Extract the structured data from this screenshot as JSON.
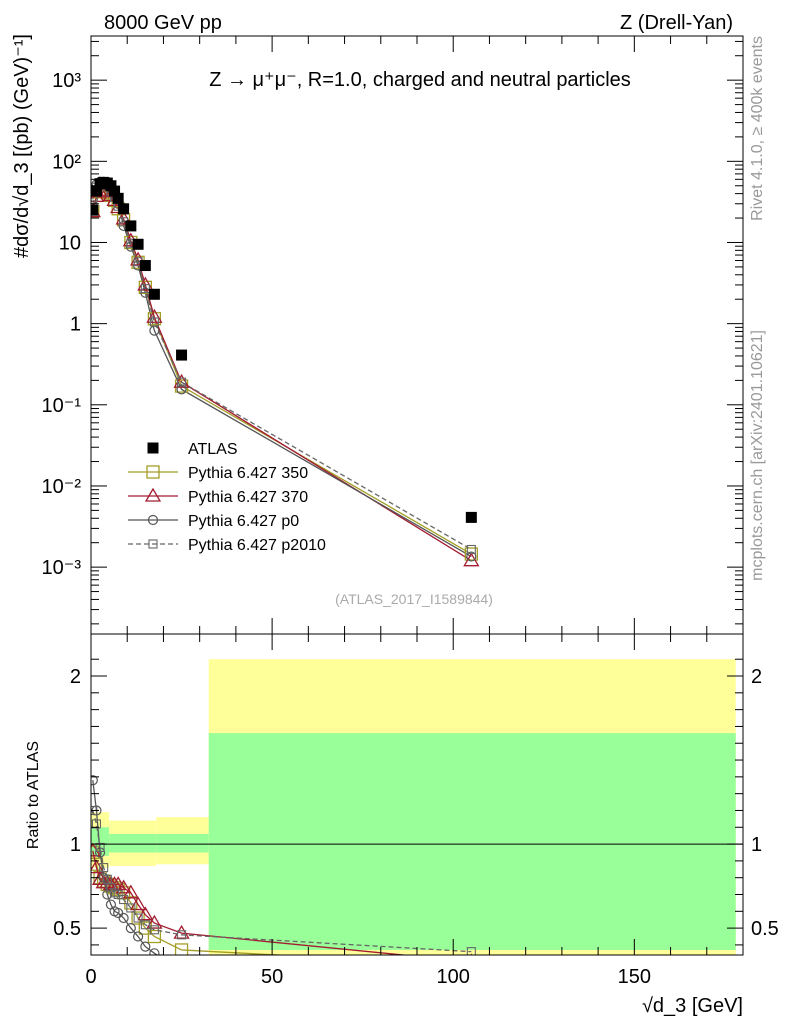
{
  "header": {
    "left": "8000 GeV pp",
    "right": "Z (Drell-Yan)",
    "title": "Z → μ⁺μ⁻, R=1.0, charged and neutral particles",
    "side_rivet": "Rivet 4.1.0, ≥ 400k events",
    "side_mcplots": "mcplots.cern.ch [arXiv:2401.10621]",
    "watermark": "(ATLAS_2017_I1589844)"
  },
  "chart_data": [
    {
      "type": "scatter",
      "name": "main",
      "ylabel": "#dσ/d√d_3 [(pb) (GeV)⁻¹]",
      "yscale": "log",
      "ylim": [
        0.00015,
        3500
      ],
      "xlim": [
        0,
        180
      ],
      "ytick_labels": [
        "10⁻³",
        "10⁻²",
        "10⁻¹",
        "1",
        "10",
        "10²",
        "10³"
      ],
      "ytick_values": [
        0.001,
        0.01,
        0.1,
        1,
        10,
        100,
        1000
      ],
      "x": [
        0.5,
        1.5,
        2.5,
        3.5,
        4.5,
        5.5,
        6.5,
        7.5,
        9,
        11,
        13,
        15,
        17.5,
        25,
        105
      ],
      "atlas": [
        25,
        43,
        53,
        55,
        54,
        50,
        43,
        35,
        26,
        16,
        9.5,
        5.2,
        2.3,
        0.41,
        0.0041
      ],
      "series": [
        {
          "name": "Pythia 6.427 350",
          "color": "#a39e26",
          "marker": "square-open",
          "dash": "solid",
          "values": [
            24,
            38,
            42,
            43,
            41,
            38,
            33,
            26,
            19,
            10,
            5.7,
            2.8,
            1.15,
            0.17,
            0.00145
          ]
        },
        {
          "name": "Pythia 6.427 370",
          "color": "#a31c32",
          "marker": "triangle-open",
          "dash": "solid",
          "values": [
            24,
            37,
            42,
            44,
            42,
            38,
            33,
            27,
            19.5,
            10.5,
            6.1,
            3.0,
            1.2,
            0.19,
            0.0012
          ]
        },
        {
          "name": "Pythia 6.427 p0",
          "color": "#555555",
          "marker": "circle-open",
          "dash": "solid",
          "values": [
            34,
            52,
            56,
            56,
            52,
            46,
            38,
            30,
            16,
            8.9,
            5.2,
            2.4,
            0.82,
            0.155,
            0.00135
          ]
        },
        {
          "name": "Pythia 6.427 p2010",
          "color": "#666666",
          "marker": "square-small",
          "dash": "dashed",
          "values": [
            29,
            48,
            52,
            52,
            49,
            42,
            36,
            28,
            18,
            9.8,
            5.8,
            2.7,
            1.05,
            0.19,
            0.00165
          ]
        }
      ],
      "legend": {
        "position": "bottom-left",
        "entries": [
          "ATLAS",
          "Pythia 6.427 350",
          "Pythia 6.427 370",
          "Pythia 6.427 p0",
          "Pythia 6.427 p2010"
        ]
      }
    },
    {
      "type": "scatter",
      "name": "ratio",
      "ylabel": "Ratio to ATLAS",
      "xlabel": "√d_3 [GeV]",
      "ylim": [
        0.34,
        2.25
      ],
      "xlim": [
        0,
        180
      ],
      "xtick_labels": [
        "0",
        "50",
        "100",
        "150"
      ],
      "xtick_values": [
        0,
        50,
        100,
        150
      ],
      "ytick_labels": [
        "0.5",
        "1",
        "2"
      ],
      "ytick_values": [
        0.5,
        1,
        2
      ],
      "bands": [
        {
          "x0": 0,
          "x1": 5,
          "yellow": [
            0.86,
            1.19
          ],
          "green": [
            0.93,
            1.1
          ]
        },
        {
          "x0": 5,
          "x1": 18,
          "yellow": [
            0.87,
            1.14
          ],
          "green": [
            0.95,
            1.06
          ]
        },
        {
          "x0": 18,
          "x1": 32.5,
          "yellow": [
            0.88,
            1.16
          ],
          "green": [
            0.95,
            1.06
          ]
        },
        {
          "x0": 32.5,
          "x1": 178,
          "yellow": [
            0.34,
            2.1
          ],
          "green": [
            0.37,
            1.66
          ]
        }
      ],
      "x": [
        0.5,
        1.5,
        2.5,
        3.5,
        4.5,
        5.5,
        6.5,
        7.5,
        9,
        11,
        13,
        15,
        17.5,
        25,
        105
      ],
      "series": [
        {
          "name": "Pythia 6.427 350",
          "values": [
            0.95,
            0.88,
            0.8,
            0.78,
            0.76,
            0.75,
            0.74,
            0.73,
            0.71,
            0.65,
            0.56,
            0.5,
            0.45,
            0.37,
            0.28
          ]
        },
        {
          "name": "Pythia 6.427 370",
          "values": [
            0.96,
            0.86,
            0.79,
            0.77,
            0.77,
            0.76,
            0.76,
            0.76,
            0.74,
            0.71,
            0.64,
            0.58,
            0.53,
            0.47,
            0.3
          ]
        },
        {
          "name": "Pythia 6.427 p0",
          "values": [
            1.38,
            1.2,
            0.95,
            0.8,
            0.7,
            0.64,
            0.6,
            0.59,
            0.56,
            0.5,
            0.45,
            0.39,
            0.35,
            0.25,
            0.3
          ]
        },
        {
          "name": "Pythia 6.427 p2010",
          "values": [
            1.2,
            1.12,
            0.98,
            0.86,
            0.79,
            0.74,
            0.71,
            0.7,
            0.67,
            0.62,
            0.56,
            0.52,
            0.49,
            0.46,
            0.36
          ]
        }
      ]
    }
  ]
}
